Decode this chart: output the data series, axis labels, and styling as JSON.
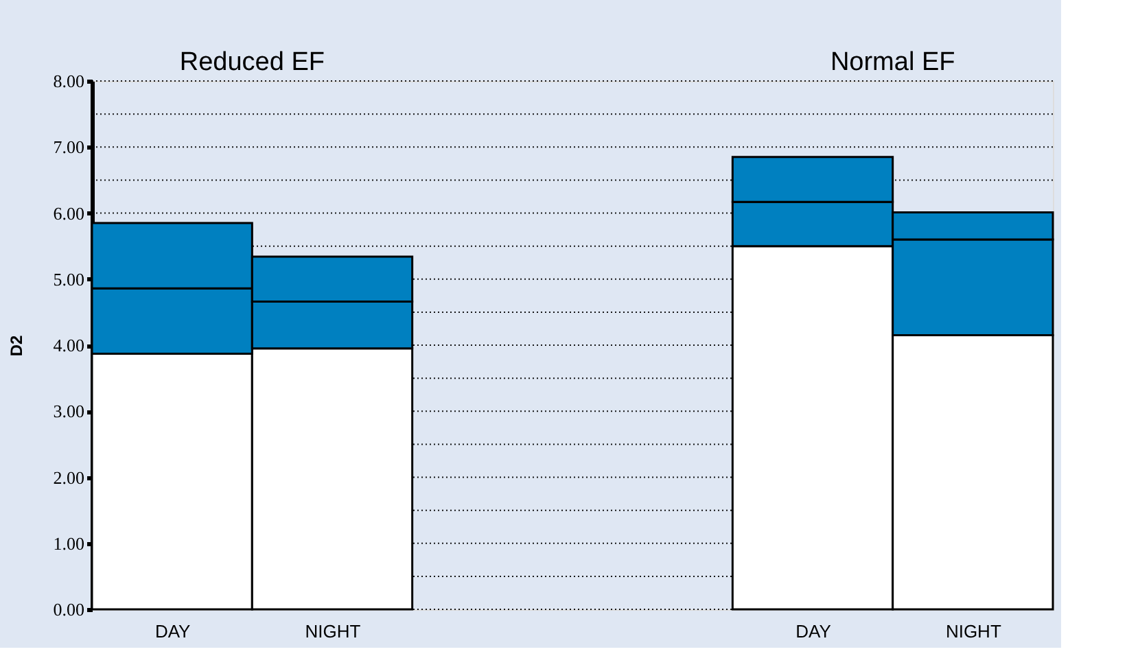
{
  "chart_data": {
    "type": "bar",
    "stacked": true,
    "ylabel": "D2",
    "categories": [
      "DAY",
      "NIGHT",
      null,
      null,
      "DAY",
      "NIGHT"
    ],
    "series": [
      {
        "color": "#ffffff",
        "values": [
          3.87,
          3.95,
          null,
          null,
          5.5,
          4.15
        ]
      },
      {
        "color": "#0080c0",
        "values": [
          0.99,
          0.71,
          null,
          null,
          0.67,
          1.45
        ]
      },
      {
        "color": "#0080c0",
        "values": [
          0.99,
          0.68,
          null,
          null,
          0.68,
          0.41
        ]
      }
    ],
    "annotations": [
      "Reduced EF",
      "Normal EF"
    ],
    "ylim": [
      0,
      8
    ],
    "yticks": [
      {
        "value": 0,
        "label": "0.00"
      },
      {
        "value": 0.5,
        "label": null
      },
      {
        "value": 1,
        "label": "1.00"
      },
      {
        "value": 1.5,
        "label": null
      },
      {
        "value": 2,
        "label": "2.00"
      },
      {
        "value": 2.5,
        "label": null
      },
      {
        "value": 3,
        "label": "3.00"
      },
      {
        "value": 3.5,
        "label": null
      },
      {
        "value": 4,
        "label": "4.00"
      },
      {
        "value": 4.5,
        "label": null
      },
      {
        "value": 5,
        "label": "5.00"
      },
      {
        "value": 5.5,
        "label": null
      },
      {
        "value": 6,
        "label": "6.00"
      },
      {
        "value": 6.5,
        "label": null
      },
      {
        "value": 7,
        "label": "7.00"
      },
      {
        "value": 7.5,
        "label": null
      },
      {
        "value": 8,
        "label": "8.00"
      }
    ],
    "grid": "y",
    "legend": false
  }
}
